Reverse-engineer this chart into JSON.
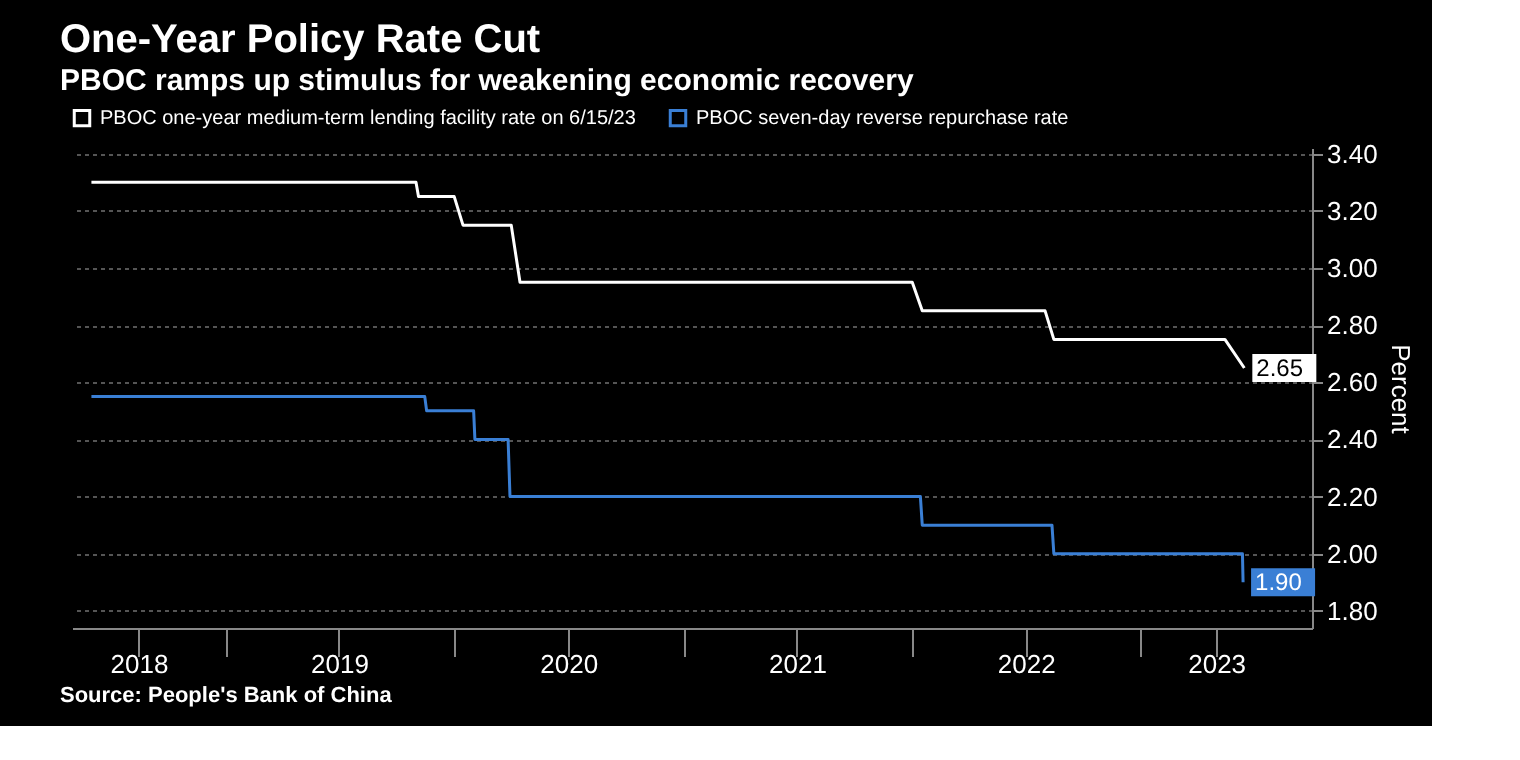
{
  "chart_data": {
    "type": "line",
    "title": "One-Year Policy Rate Cut",
    "subtitle": "PBOC ramps up stimulus for weakening economic recovery",
    "ylabel": "Percent",
    "series": [
      {
        "name": "PBOC one-year medium-term lending facility rate on 6/15/23",
        "color": "#ffffff",
        "x": [
          "2018-06-01",
          "2019-11-01",
          "2019-11-05",
          "2020-01-01",
          "2020-01-15",
          "2020-04-01",
          "2020-04-15",
          "2022-01-01",
          "2022-01-17",
          "2022-08-01",
          "2022-08-15",
          "2023-05-15",
          "2023-06-15"
        ],
        "values": [
          3.3,
          3.3,
          3.25,
          3.25,
          3.15,
          3.15,
          2.95,
          2.95,
          2.85,
          2.85,
          2.75,
          2.75,
          2.65
        ],
        "value_labels": [
          null,
          null,
          null,
          null,
          null,
          null,
          null,
          null,
          null,
          null,
          null,
          null,
          "2.65"
        ]
      },
      {
        "name": "PBOC seven-day reverse repurchase rate",
        "color": "#3a7fd5",
        "x": [
          "2018-06-01",
          "2019-11-15",
          "2019-11-18",
          "2020-02-01",
          "2020-02-03",
          "2020-03-27",
          "2020-03-30",
          "2022-01-14",
          "2022-01-17",
          "2022-08-12",
          "2022-08-15",
          "2023-06-12",
          "2023-06-13"
        ],
        "values": [
          2.55,
          2.55,
          2.5,
          2.5,
          2.4,
          2.4,
          2.2,
          2.2,
          2.1,
          2.1,
          2.0,
          2.0,
          1.9
        ],
        "value_labels": [
          null,
          null,
          null,
          null,
          null,
          null,
          null,
          null,
          null,
          null,
          null,
          null,
          "1.90"
        ]
      }
    ],
    "xlim": [
      "2018-05-01",
      "2023-10-01"
    ],
    "xticks": [
      {
        "value": "2018-08-15",
        "label": "2018"
      },
      {
        "value": "2019-01-01",
        "label": null
      },
      {
        "value": "2019-07-01",
        "label": "2019"
      },
      {
        "value": "2020-01-01",
        "label": null
      },
      {
        "value": "2020-07-01",
        "label": "2020"
      },
      {
        "value": "2021-01-01",
        "label": null
      },
      {
        "value": "2021-07-01",
        "label": "2021"
      },
      {
        "value": "2022-01-01",
        "label": null
      },
      {
        "value": "2022-07-01",
        "label": "2022"
      },
      {
        "value": "2023-01-01",
        "label": null
      },
      {
        "value": "2023-05-01",
        "label": "2023"
      }
    ],
    "ylim": [
      1.74,
      3.42
    ],
    "yticks": [
      {
        "value": 1.8,
        "label": "1.80"
      },
      {
        "value": 2.0,
        "label": "2.00"
      },
      {
        "value": 2.2,
        "label": "2.20"
      },
      {
        "value": 2.4,
        "label": "2.40"
      },
      {
        "value": 2.6,
        "label": "2.60"
      },
      {
        "value": 2.8,
        "label": "2.80"
      },
      {
        "value": 3.0,
        "label": "3.00"
      },
      {
        "value": 3.2,
        "label": "3.20"
      },
      {
        "value": 3.4,
        "label": "3.40"
      }
    ],
    "grid": "y",
    "legend": "top left",
    "annotations": [
      "Source: People's Bank of China"
    ]
  }
}
